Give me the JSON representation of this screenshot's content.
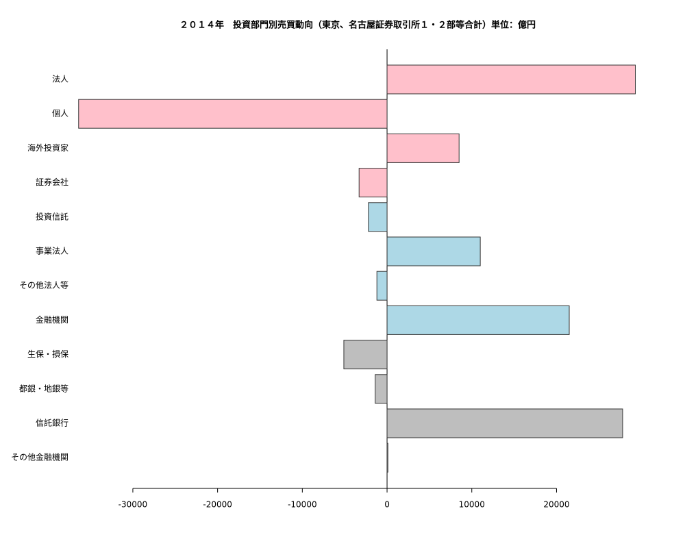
{
  "chart_data": {
    "type": "barh",
    "title": "２０１４年　投資部門別売買動向（東京、名古屋証券取引所１・２部等合計）単位：億円",
    "categories": [
      "法人",
      "個人",
      "海外投資家",
      "証券会社",
      "投資信託",
      "事業法人",
      "その他法人等",
      "金融機関",
      "生保・損保",
      "都銀・地銀等",
      "信託銀行",
      "その他金融機関"
    ],
    "values": [
      29300,
      -36400,
      8500,
      -3300,
      -2200,
      11000,
      -1200,
      21500,
      -5100,
      -1400,
      27800,
      100
    ],
    "colors": [
      "#ffc0cb",
      "#ffc0cb",
      "#ffc0cb",
      "#ffc0cb",
      "#add8e6",
      "#add8e6",
      "#add8e6",
      "#add8e6",
      "#bebebe",
      "#bebebe",
      "#bebebe",
      "#bebebe"
    ],
    "xlim": [
      -39000,
      32000
    ],
    "xticks": [
      -30000,
      -20000,
      -10000,
      0,
      10000,
      20000
    ],
    "grid": false
  }
}
